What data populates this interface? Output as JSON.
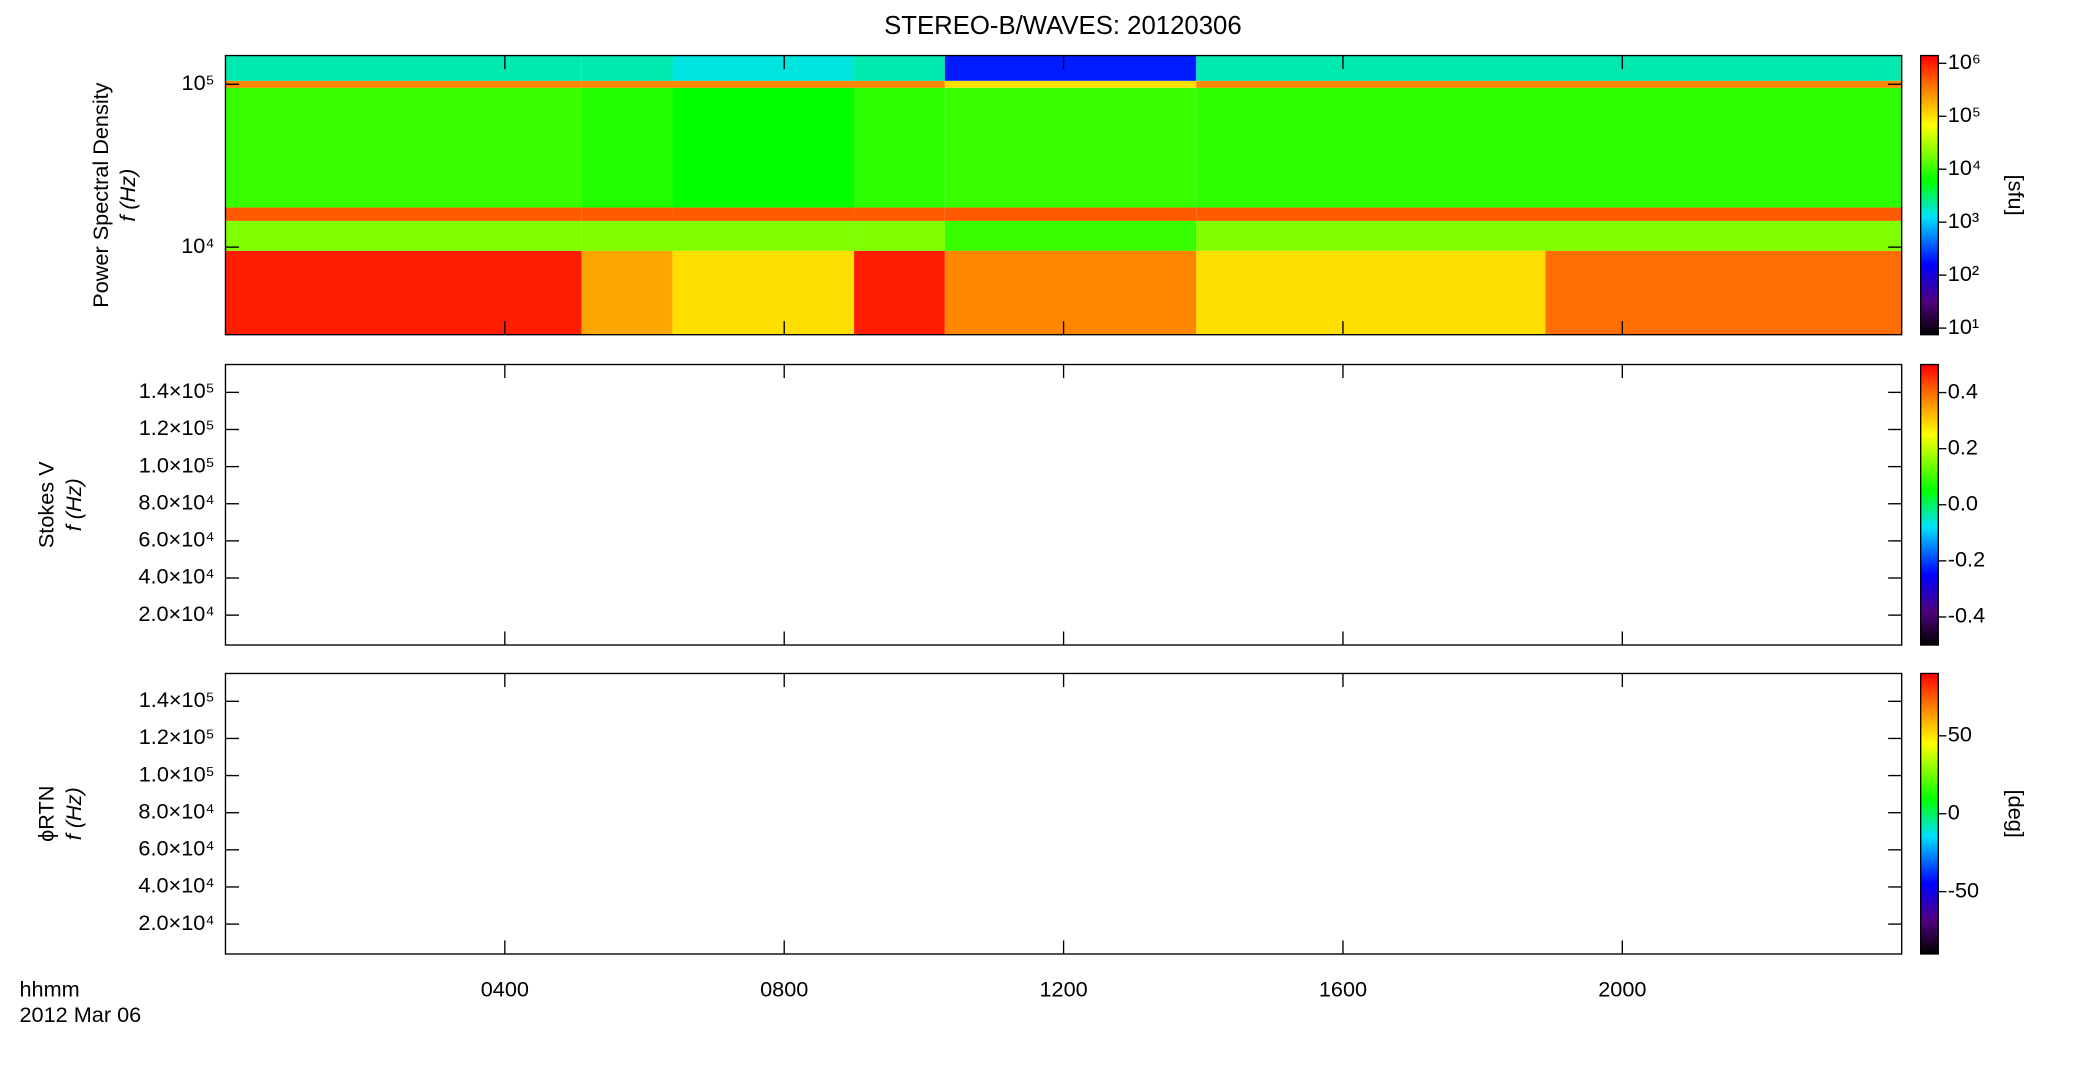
{
  "chart_data": {
    "type": "spectrogram",
    "title": "STEREO-B/WAVES: 20120306",
    "colormap": "rainbow",
    "xlim": [
      0,
      24
    ],
    "xticks": [
      {
        "value": 4,
        "label": "0400"
      },
      {
        "value": 8,
        "label": "0800"
      },
      {
        "value": 12,
        "label": "1200"
      },
      {
        "value": 16,
        "label": "1600"
      },
      {
        "value": 20,
        "label": "2000"
      }
    ],
    "xlabel": "hhmm",
    "date_label": "2012 Mar 06",
    "panels": [
      {
        "ylabel": [
          "Power Spectral Density",
          "f (Hz)"
        ],
        "yscale": "log",
        "ylim": [
          2900,
          150000
        ],
        "yticks": [
          {
            "value": 10000,
            "label": "10⁴"
          },
          {
            "value": 100000,
            "label": "10⁵"
          }
        ],
        "colorbar": {
          "scale": "log",
          "lim": [
            7.5,
            1400000
          ],
          "label": "[sfu]",
          "ticks": [
            {
              "value": 10,
              "label": "10¹"
            },
            {
              "value": 100,
              "label": "10²"
            },
            {
              "value": 1000,
              "label": "10³"
            },
            {
              "value": 10000,
              "label": "10⁴"
            },
            {
              "value": 100000,
              "label": "10⁵"
            },
            {
              "value": 1000000,
              "label": "10⁶"
            }
          ]
        },
        "heatmap": {
          "x_edges": [
            0,
            5.1,
            6.4,
            9.0,
            10.3,
            13.9,
            18.9,
            24
          ],
          "y_edges": [
            2900,
            9500,
            14500,
            17500,
            95000,
            105000,
            150000
          ],
          "values": [
            [
              1000000,
              200000,
              100000,
              1000000,
              300000,
              100000,
              400000
            ],
            [
              20000,
              20000,
              20000,
              20000,
              10000,
              20000,
              20000
            ],
            [
              500000,
              500000,
              500000,
              500000,
              500000,
              500000,
              500000
            ],
            [
              10000,
              8000,
              6000,
              9000,
              10000,
              9000,
              9000
            ],
            [
              300000,
              300000,
              300000,
              300000,
              100000,
              300000,
              300000
            ],
            [
              2000,
              2000,
              1500,
              2000,
              200,
              2000,
              2000
            ]
          ]
        }
      },
      {
        "ylabel": [
          "Stokes V",
          "f (Hz)"
        ],
        "yscale": "linear",
        "ylim": [
          3900,
          155000
        ],
        "yticks": [
          {
            "value": 20000,
            "label": "2.0×10⁴"
          },
          {
            "value": 40000,
            "label": "4.0×10⁴"
          },
          {
            "value": 60000,
            "label": "6.0×10⁴"
          },
          {
            "value": 80000,
            "label": "8.0×10⁴"
          },
          {
            "value": 100000,
            "label": "1.0×10⁵"
          },
          {
            "value": 120000,
            "label": "1.2×10⁵"
          },
          {
            "value": 140000,
            "label": "1.4×10⁵"
          }
        ],
        "colorbar": {
          "scale": "linear",
          "lim": [
            -0.5,
            0.5
          ],
          "ticks": [
            {
              "value": -0.4,
              "label": "-0.4"
            },
            {
              "value": -0.2,
              "label": "-0.2"
            },
            {
              "value": 0,
              "label": "0.0"
            },
            {
              "value": 0.2,
              "label": "0.2"
            },
            {
              "value": 0.4,
              "label": "0.4"
            }
          ]
        }
      },
      {
        "ylabel": [
          "ϕRTN",
          "f (Hz)"
        ],
        "yscale": "linear",
        "ylim": [
          3900,
          155000
        ],
        "yticks": [
          {
            "value": 20000,
            "label": "2.0×10⁴"
          },
          {
            "value": 40000,
            "label": "4.0×10⁴"
          },
          {
            "value": 60000,
            "label": "6.0×10⁴"
          },
          {
            "value": 80000,
            "label": "8.0×10⁴"
          },
          {
            "value": 100000,
            "label": "1.0×10⁵"
          },
          {
            "value": 120000,
            "label": "1.2×10⁵"
          },
          {
            "value": 140000,
            "label": "1.4×10⁵"
          }
        ],
        "colorbar": {
          "scale": "linear",
          "lim": [
            -90,
            90
          ],
          "label": "[deg]",
          "ticks": [
            -50,
            0,
            50
          ]
        }
      }
    ]
  }
}
